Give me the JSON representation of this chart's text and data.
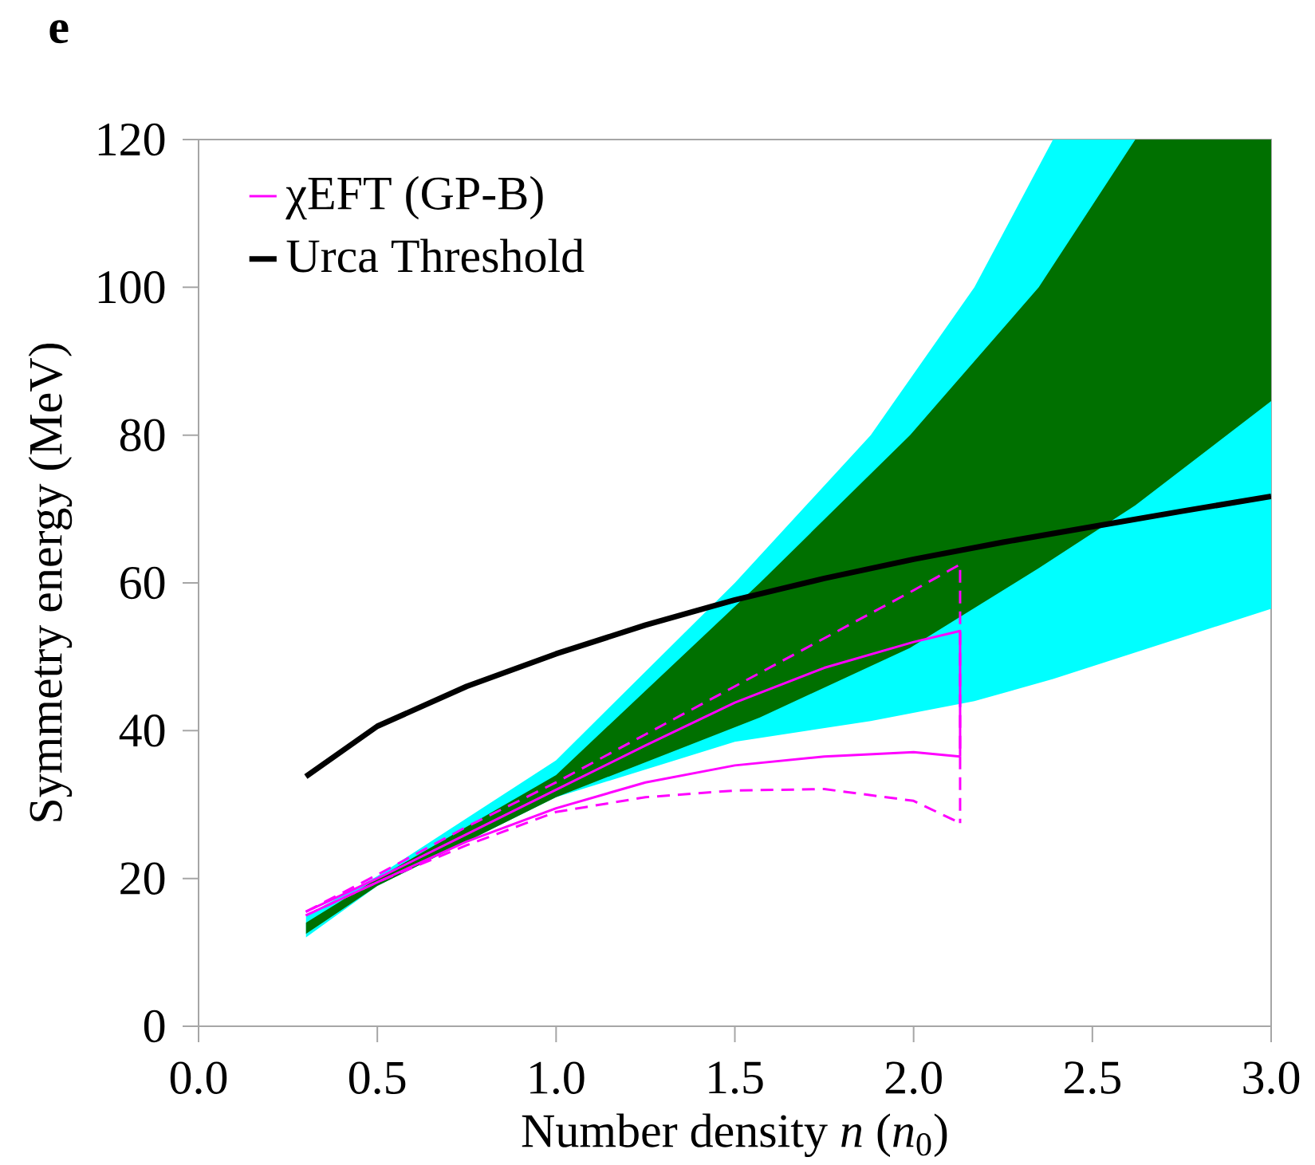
{
  "chart_data": {
    "type": "line",
    "xlabel": "Number density *n* (*n*$_{0}$)",
    "ylabel": "Symmetry energy (MeV)",
    "annotations": [
      "e"
    ],
    "xlim": [
      0,
      3
    ],
    "ylim": [
      0,
      120
    ],
    "xticks": [
      {
        "value": 0,
        "label": "0.0"
      },
      {
        "value": 0.5,
        "label": "0.5"
      },
      {
        "value": 1,
        "label": "1.0"
      },
      {
        "value": 1.5,
        "label": "1.5"
      },
      {
        "value": 2,
        "label": "2.0"
      },
      {
        "value": 2.5,
        "label": "2.5"
      },
      {
        "value": 3,
        "label": "3.0"
      }
    ],
    "yticks": [
      0,
      20,
      40,
      60,
      80,
      100,
      120
    ],
    "legend": "top left",
    "grid": false,
    "series": [
      {
        "color": "#00ffff",
        "x": [
          0.3,
          0.5,
          1.0,
          1.5,
          1.88,
          2.17,
          2.39,
          3.0
        ],
        "values": [
          null,
          null,
          null,
          null,
          null,
          null,
          null,
          null
        ],
        "upper": [
          15,
          20.3,
          36,
          60,
          80,
          100,
          120,
          120
        ],
        "lower": [
          12,
          19,
          31,
          38.5,
          41.3,
          44,
          47,
          56.5
        ]
      },
      {
        "color": "#007000",
        "x": [
          0.3,
          0.5,
          1.0,
          1.57,
          1.99,
          2.35,
          2.62,
          3.0
        ],
        "values": [
          null,
          null,
          null,
          null,
          null,
          null,
          null,
          null
        ],
        "upper": [
          14,
          20,
          34,
          60,
          80,
          100,
          120,
          120
        ],
        "lower": [
          12.5,
          19,
          31,
          41.8,
          51.2,
          62,
          70.5,
          84.6
        ]
      },
      {
        "name": "χEFT (GP-B)",
        "color": "#ff00ff",
        "line_style": "solid",
        "x": [
          0.3,
          0.5,
          0.75,
          1.0,
          1.25,
          1.5,
          1.75,
          2.0,
          2.13,
          2.13
        ],
        "values": [
          15.5,
          20,
          26,
          32,
          38,
          43.8,
          48.5,
          52,
          53.5,
          36.5
        ]
      },
      {
        "color": "#ff00ff",
        "line_style": "solid",
        "x": [
          0.3,
          0.5,
          0.75,
          1.0,
          1.25,
          1.5,
          1.75,
          2.0,
          2.13
        ],
        "values": [
          15,
          19.5,
          25,
          29.5,
          33,
          35.3,
          36.5,
          37.1,
          36.5
        ]
      },
      {
        "color": "#ff00ff",
        "line_style": "dashed",
        "x": [
          0.3,
          0.5,
          0.75,
          1.0,
          1.25,
          1.5,
          1.75,
          2.0,
          2.13,
          2.13
        ],
        "values": [
          15.5,
          20.5,
          27,
          33,
          39.5,
          46,
          52.5,
          59,
          62.5,
          27.5
        ]
      },
      {
        "color": "#ff00ff",
        "line_style": "dashed",
        "x": [
          0.3,
          0.5,
          0.75,
          1.0,
          1.25,
          1.5,
          1.75,
          2.0,
          2.13
        ],
        "values": [
          15,
          19.5,
          24.5,
          29,
          31,
          31.9,
          32.1,
          30.5,
          27.5
        ]
      },
      {
        "name": "Urca Threshold",
        "color": "#000000",
        "x": [
          0.3,
          0.5,
          0.75,
          1.0,
          1.25,
          1.5,
          1.75,
          2.0,
          2.25,
          2.5,
          2.75,
          3.0
        ],
        "values": [
          33.8,
          40.6,
          46,
          50.4,
          54.3,
          57.7,
          60.6,
          63.2,
          65.5,
          67.6,
          69.7,
          71.7
        ]
      }
    ]
  }
}
